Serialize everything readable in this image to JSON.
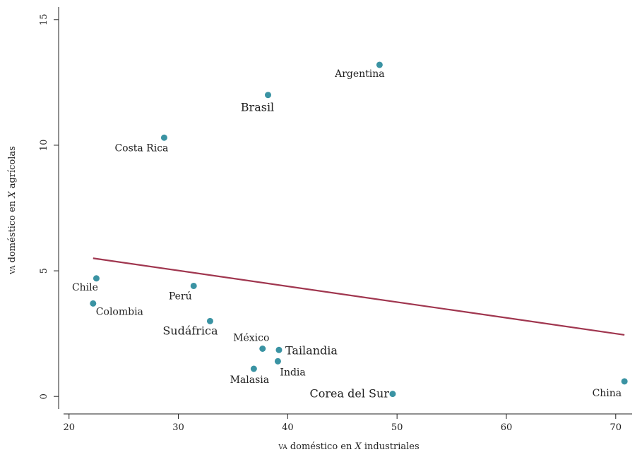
{
  "chart_data": {
    "type": "scatter",
    "xlabel_prefix": "va",
    "xlabel_mid": " doméstico en ",
    "xlabel_var": "X",
    "xlabel_suffix": " industriales",
    "ylabel_prefix": "va",
    "ylabel_mid": " doméstico en ",
    "ylabel_var": "X",
    "ylabel_suffix": " agrícolas",
    "xlim": [
      19.5,
      71.5
    ],
    "ylim": [
      -0.5,
      15.5
    ],
    "xticks": [
      20,
      30,
      40,
      50,
      60,
      70
    ],
    "yticks": [
      0,
      5,
      10,
      15
    ],
    "grid": false,
    "point_color": "#3a93a3",
    "fit_color": "#a0364f",
    "points": [
      {
        "label": "Argentina",
        "x": 48.4,
        "y": 13.2
      },
      {
        "label": "Brasil",
        "x": 38.2,
        "y": 12.0
      },
      {
        "label": "Costa Rica",
        "x": 28.7,
        "y": 10.3
      },
      {
        "label": "Chile",
        "x": 22.5,
        "y": 4.7
      },
      {
        "label": "Perú",
        "x": 31.4,
        "y": 4.4
      },
      {
        "label": "Colombia",
        "x": 22.2,
        "y": 3.7
      },
      {
        "label": "Sudáfrica",
        "x": 32.9,
        "y": 3.0
      },
      {
        "label": "México",
        "x": 37.7,
        "y": 1.9
      },
      {
        "label": "Tailandia",
        "x": 39.2,
        "y": 1.85
      },
      {
        "label": "India",
        "x": 39.1,
        "y": 1.4
      },
      {
        "label": "Malasia",
        "x": 36.9,
        "y": 1.1
      },
      {
        "label": "Corea del Sur",
        "x": 49.6,
        "y": 0.1
      },
      {
        "label": "China",
        "x": 70.8,
        "y": 0.6
      }
    ],
    "fit_line": {
      "x": [
        22.2,
        70.8
      ],
      "y": [
        5.5,
        2.45
      ]
    }
  }
}
